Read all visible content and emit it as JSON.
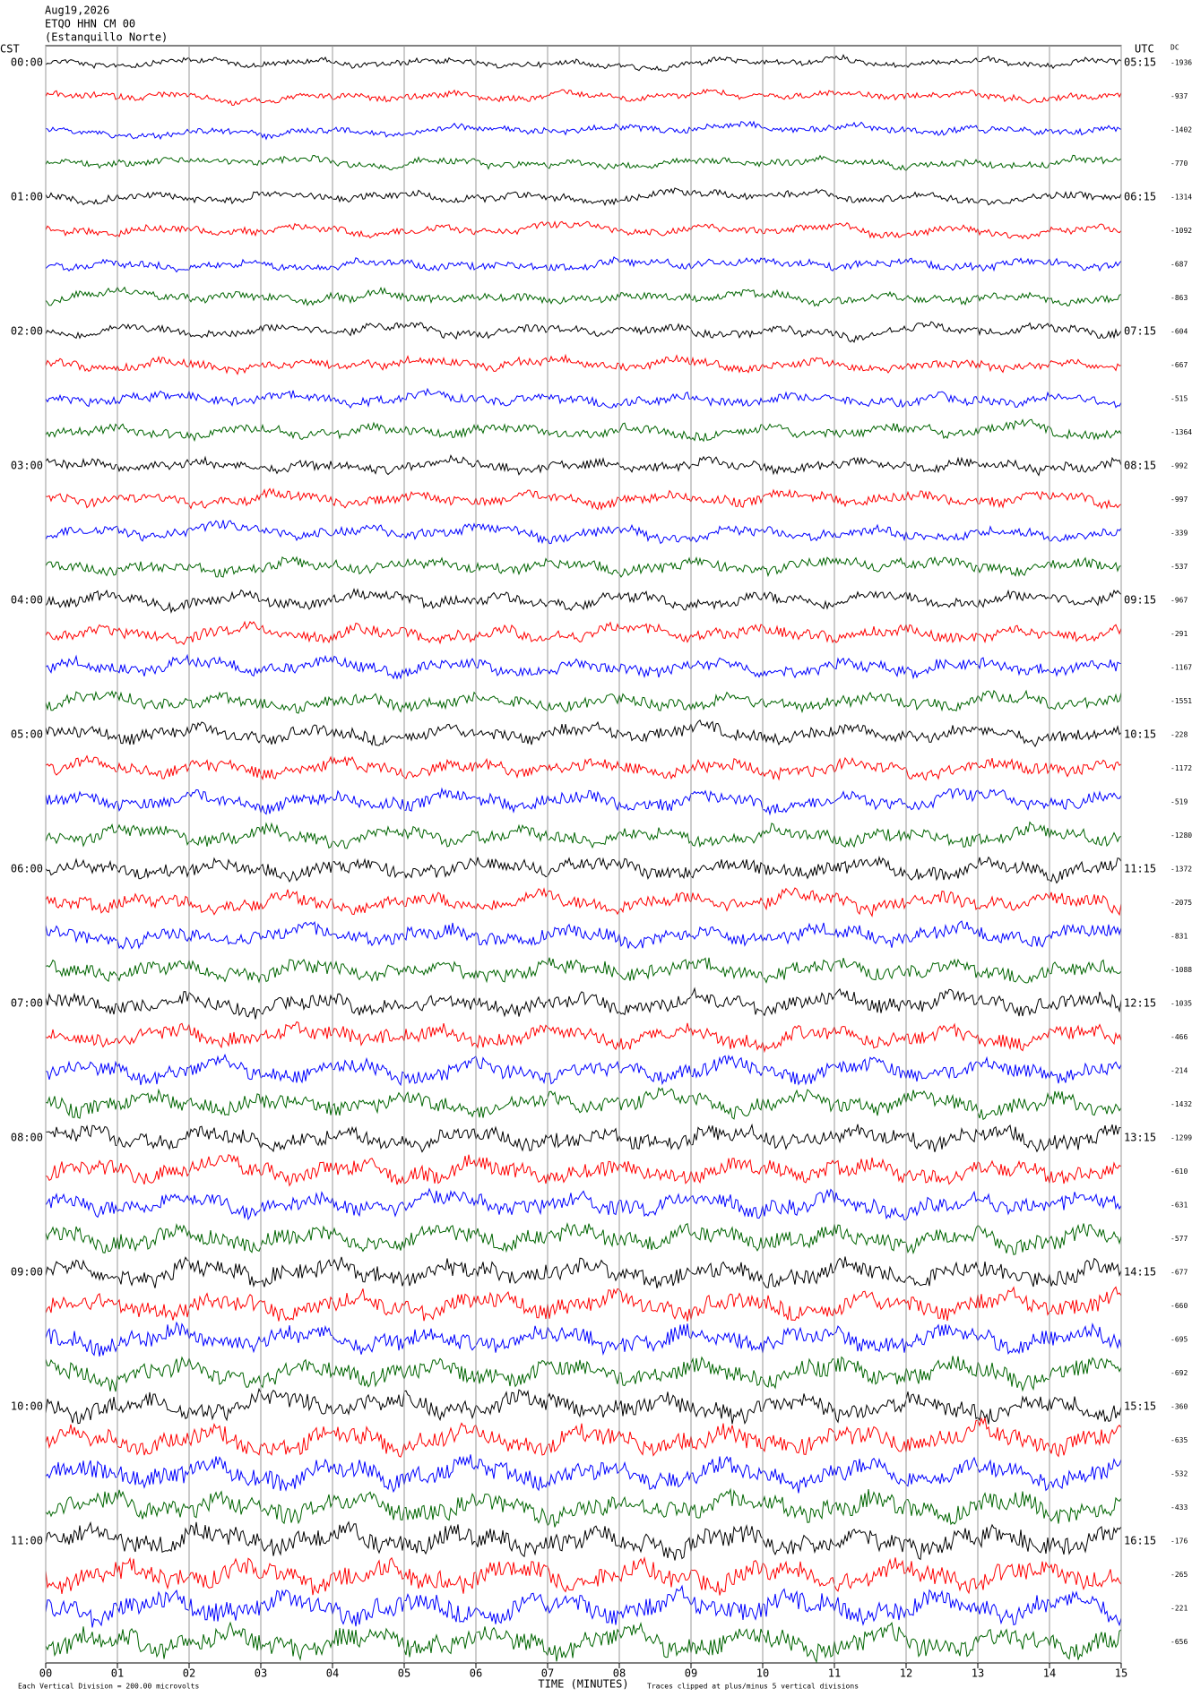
{
  "chart_data": {
    "type": "helicorder",
    "date": "Aug19,2026",
    "station": "ETQO HHN CM 00",
    "station_name": "(Estanquillo Norte)",
    "left_axis_title": "CST",
    "right_axis_title": "UTC",
    "dc_title": "DC",
    "cst_labels": [
      "00:00",
      "01:00",
      "02:00",
      "03:00",
      "04:00",
      "05:00",
      "06:00",
      "07:00",
      "08:00",
      "09:00",
      "10:00",
      "11:00"
    ],
    "utc_labels": [
      "05:15",
      "06:15",
      "07:15",
      "08:15",
      "09:15",
      "10:15",
      "11:15",
      "12:15",
      "13:15",
      "14:15",
      "15:15",
      "16:15"
    ],
    "dc_offsets": [
      -1936,
      -937,
      -1402,
      -770,
      -1314,
      -1092,
      -687,
      -863,
      -604,
      -667,
      -515,
      -1364,
      -992,
      -997,
      -339,
      -537,
      -967,
      -291,
      -1167,
      -1551,
      -228,
      -1172,
      -519,
      -1280,
      -1372,
      -2075,
      -831,
      -1088,
      -1035,
      -466,
      -214,
      -1432,
      -1299,
      -610,
      -631,
      -577,
      -677,
      -660,
      -695,
      -692,
      -360,
      -635,
      -532,
      -433,
      -176,
      -265,
      -221,
      -656
    ],
    "trace_colors": [
      "#000000",
      "#ff0000",
      "#0000ff",
      "#006400"
    ],
    "xlabel": "TIME (MINUTES)",
    "xlim": [
      0,
      15
    ],
    "xticks": [
      {
        "value": 0,
        "label": "00"
      },
      {
        "value": 1,
        "label": "01"
      },
      {
        "value": 2,
        "label": "02"
      },
      {
        "value": 3,
        "label": "03"
      },
      {
        "value": 4,
        "label": "04"
      },
      {
        "value": 5,
        "label": "05"
      },
      {
        "value": 6,
        "label": "06"
      },
      {
        "value": 7,
        "label": "07"
      },
      {
        "value": 8,
        "label": "08"
      },
      {
        "value": 9,
        "label": "09"
      },
      {
        "value": 10,
        "label": "10"
      },
      {
        "value": 11,
        "label": "11"
      },
      {
        "value": 12,
        "label": "12"
      },
      {
        "value": 13,
        "label": "13"
      },
      {
        "value": 14,
        "label": "14"
      },
      {
        "value": 15,
        "label": "15"
      }
    ],
    "scale_note": "Each Vertical Division = 200.00 microvolts",
    "clip_note": "Traces clipped at plus/minus 5 vertical divisions",
    "grid": true
  }
}
